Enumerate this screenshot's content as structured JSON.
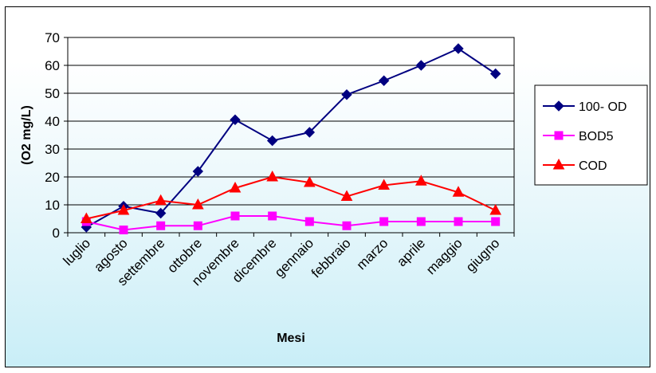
{
  "chart_data": {
    "type": "line",
    "title": "",
    "xlabel": "Mesi",
    "ylabel": "(O2 mg/L)",
    "ylim": [
      0,
      70
    ],
    "yticks": [
      0,
      10,
      20,
      30,
      40,
      50,
      60,
      70
    ],
    "grid": true,
    "legend_position": "right",
    "categories": [
      "luglio",
      "agosto",
      "settembre",
      "ottobre",
      "novembre",
      "dicembre",
      "gennaio",
      "febbraio",
      "marzo",
      "aprile",
      "maggio",
      "giugno"
    ],
    "series": [
      {
        "name": "100- OD",
        "color": "#000080",
        "marker": "diamond",
        "values": [
          2,
          9.5,
          7,
          22,
          40.5,
          33,
          36,
          49.5,
          54.5,
          60,
          66,
          57
        ]
      },
      {
        "name": "BOD5",
        "color": "#ff00ff",
        "marker": "square",
        "values": [
          4,
          1,
          2.5,
          2.5,
          6,
          6,
          4,
          2.5,
          4,
          4,
          4,
          4
        ]
      },
      {
        "name": "COD",
        "color": "#ff0000",
        "marker": "triangle",
        "values": [
          5,
          8,
          11.5,
          10,
          16,
          20,
          18,
          13,
          17,
          18.5,
          14.5,
          8
        ]
      }
    ]
  }
}
